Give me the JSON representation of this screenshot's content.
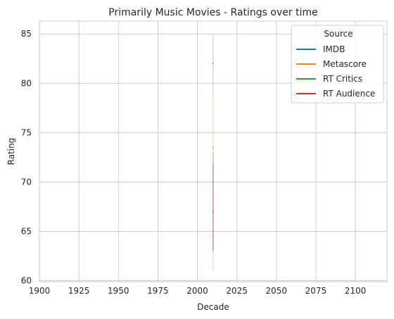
{
  "chart_data": {
    "type": "line",
    "title": "Primarily Music Movies - Ratings over time",
    "xlabel": "Decade",
    "ylabel": "Rating",
    "xlim": [
      1900,
      2120
    ],
    "ylim": [
      59.9,
      86.3
    ],
    "xticks": [
      1900,
      1925,
      1950,
      1975,
      2000,
      2025,
      2050,
      2075,
      2100
    ],
    "yticks": [
      60,
      65,
      70,
      75,
      80,
      85
    ],
    "grid": true,
    "legend": {
      "title": "Source",
      "placement": "top-right"
    },
    "series": [
      {
        "name": "IMDB",
        "color": "#1f77b4",
        "x": [
          2010
        ],
        "y": [
          73.5
        ],
        "band": [
          [
            2010,
            63,
            73
          ]
        ]
      },
      {
        "name": "Metascore",
        "color": "#ff7f0e",
        "x": [
          2010
        ],
        "y": [
          70
        ],
        "band": [
          [
            2010,
            61,
            79
          ]
        ]
      },
      {
        "name": "RT Critics",
        "color": "#2ca02c",
        "x": [
          2010
        ],
        "y": [
          82
        ],
        "band": [
          [
            2010,
            79,
            85
          ]
        ]
      },
      {
        "name": "RT Audience",
        "color": "#d62728",
        "x": [
          2010
        ],
        "y": [
          67
        ],
        "band": [
          [
            2010,
            63,
            72
          ]
        ]
      }
    ]
  }
}
